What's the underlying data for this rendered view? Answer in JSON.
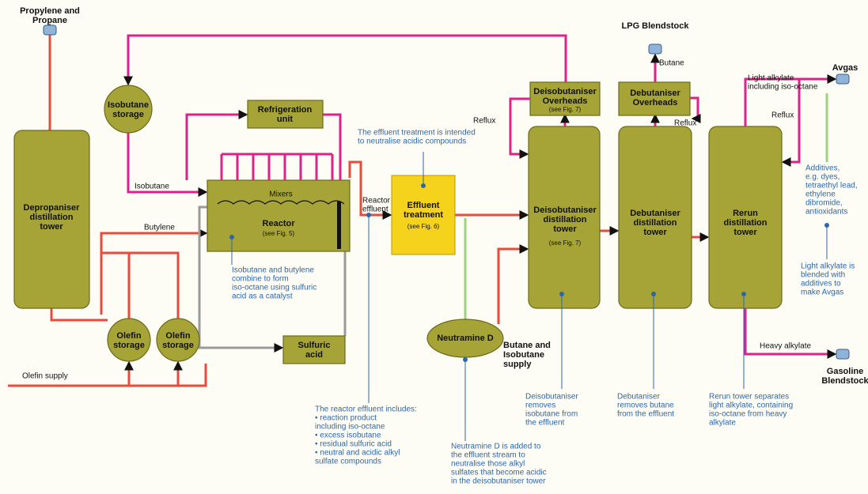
{
  "units": {
    "depropaniser": [
      "Depropaniser",
      "distillation",
      "tower"
    ],
    "isobutane_storage": [
      "Isobutane",
      "storage"
    ],
    "olefin_storage_1": [
      "Olefin",
      "storage"
    ],
    "olefin_storage_2": [
      "Olefin",
      "storage"
    ],
    "refrigeration": [
      "Refrigeration",
      "unit"
    ],
    "mixers": [
      "Mixers"
    ],
    "reactor": [
      "Reactor"
    ],
    "reactor_ref": [
      "(see Fig. 5)"
    ],
    "sulfuric_acid": [
      "Sulfuric",
      "acid"
    ],
    "effluent_treatment": [
      "Effluent",
      "treatment"
    ],
    "effluent_ref": [
      "(see Fig. 6)"
    ],
    "neutramine": [
      "Neutramine D"
    ],
    "deisobutaniser_overheads": [
      "Deisobutaniser",
      "Overheads"
    ],
    "deisobutaniser_overheads_ref": [
      "(see Fig. 7)"
    ],
    "deisobutaniser": [
      "Deisobutaniser",
      "distillation",
      "tower"
    ],
    "deisobutaniser_ref": [
      "(see Fig. 7)"
    ],
    "debutaniser_overheads": [
      "Debutaniser",
      "Overheads"
    ],
    "debutaniser": [
      "Debutaniser",
      "distillation",
      "tower"
    ],
    "rerun": [
      "Rerun",
      "distillation",
      "tower"
    ]
  },
  "products": {
    "propylene": [
      "Propylene and",
      "Propane"
    ],
    "lpg": [
      "LPG Blendstock"
    ],
    "avgas": [
      "Avgas"
    ],
    "gasoline": [
      "Gasoline",
      "Blendstock"
    ],
    "butane_isobutane_supply": [
      "Butane and",
      "Isobutane",
      "supply"
    ]
  },
  "streams": {
    "isobutane": [
      "Isobutane"
    ],
    "butylene": [
      "Butylene"
    ],
    "olefin_supply": [
      "Olefin supply"
    ],
    "reactor_effluent": [
      "Reactor",
      "effluent"
    ],
    "reflux_1": [
      "Reflux"
    ],
    "reflux_2": [
      "Reflux"
    ],
    "reflux_3": [
      "Reflux"
    ],
    "butane": [
      "Butane"
    ],
    "light_alkylate": [
      "Light alkylate",
      "including iso-octane"
    ],
    "heavy_alkylate": [
      "Heavy alkylate"
    ]
  },
  "notes": {
    "reactor": [
      "Isobutane and butylene",
      "combine to form",
      "iso-octane using sulfuric",
      "acid as a catalyst"
    ],
    "effluent": [
      "The effluent treatment is intended",
      "to neutralise acidic compounds"
    ],
    "reactor_effluent": [
      "The reactor effluent includes:",
      "• reaction product",
      "   including iso-octane",
      "• excess isobutane",
      "• residual sulfuric acid",
      "• neutral and acidic alkyl",
      "   sulfate compounds"
    ],
    "neutramine": [
      "Neutramine D is added to",
      "the effluent stream to",
      "neutralise those alkyl",
      "sulfates that become acidic",
      "in the deisobutaniser tower"
    ],
    "deisobutaniser": [
      "Deisobutaniser",
      "removes",
      "isobutane from",
      "the effluent"
    ],
    "debutaniser": [
      "Debutaniser",
      "removes butane",
      "from the effluent"
    ],
    "rerun": [
      "Rerun tower separates",
      "light alkylate, containing",
      "iso-octane from heavy",
      "alkylate"
    ],
    "additives": [
      "Additives,",
      "e.g. dyes,",
      "tetraethyl lead,",
      "ethylene",
      "dibromide,",
      "antioxidants"
    ],
    "avgas": [
      "Light alkylate is",
      "blended with",
      "additives to",
      "make Avgas"
    ]
  }
}
